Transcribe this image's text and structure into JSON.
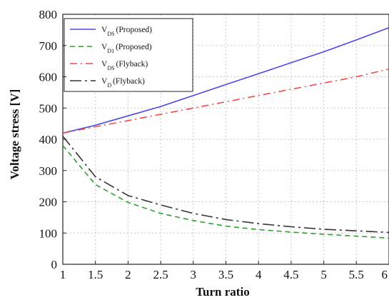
{
  "chart_data": {
    "type": "line",
    "title": "",
    "xlabel": "Turn ratio",
    "ylabel": "Voltage stress [V]",
    "xlim": [
      1,
      6
    ],
    "ylim": [
      0,
      800
    ],
    "xticks": [
      1,
      1.5,
      2,
      2.5,
      3,
      3.5,
      4,
      4.5,
      5,
      5.5,
      6
    ],
    "yticks": [
      0,
      100,
      200,
      300,
      400,
      500,
      600,
      700,
      800
    ],
    "grid": true,
    "legend_position": "top-left",
    "series": [
      {
        "name": "V(DS) (Proposed)",
        "name_main": "V",
        "name_sub": "DS",
        "name_rest": "(Proposed)",
        "color": "#4a4ae8",
        "dash": "",
        "x": [
          1,
          1.5,
          2,
          2.5,
          3,
          3.5,
          4,
          4.5,
          5,
          5.5,
          6
        ],
        "y": [
          420,
          445,
          475,
          505,
          540,
          575,
          610,
          645,
          680,
          718,
          757
        ]
      },
      {
        "name": "V(D1) (Proposed)",
        "name_main": "V",
        "name_sub": "D1",
        "name_rest": "(Proposed)",
        "color": "#2e9e2e",
        "dash": "7,5",
        "x": [
          1,
          1.5,
          2,
          2.5,
          3,
          3.5,
          4,
          4.5,
          5,
          5.5,
          6
        ],
        "y": [
          380,
          255,
          198,
          163,
          140,
          122,
          111,
          103,
          96,
          90,
          84
        ]
      },
      {
        "name": "V(DS) (Flyback)",
        "name_main": "V",
        "name_sub": "DS",
        "name_rest": "(Flyback)",
        "color": "#f04a4a",
        "dash": "10,5,2,5",
        "x": [
          1,
          1.5,
          2,
          2.5,
          3,
          3.5,
          4,
          4.5,
          5,
          5.5,
          6
        ],
        "y": [
          420,
          440,
          460,
          480,
          500,
          520,
          540,
          560,
          580,
          600,
          625
        ]
      },
      {
        "name": "V(D) (Flyback)",
        "name_main": "V",
        "name_sub": "D",
        "name_rest": "(Flyback)",
        "color": "#333333",
        "dash": "16,5,3,5",
        "x": [
          1,
          1.5,
          2,
          2.5,
          3,
          3.5,
          4,
          4.5,
          5,
          5.5,
          6
        ],
        "y": [
          410,
          280,
          220,
          190,
          163,
          143,
          130,
          120,
          112,
          107,
          102
        ]
      }
    ]
  }
}
